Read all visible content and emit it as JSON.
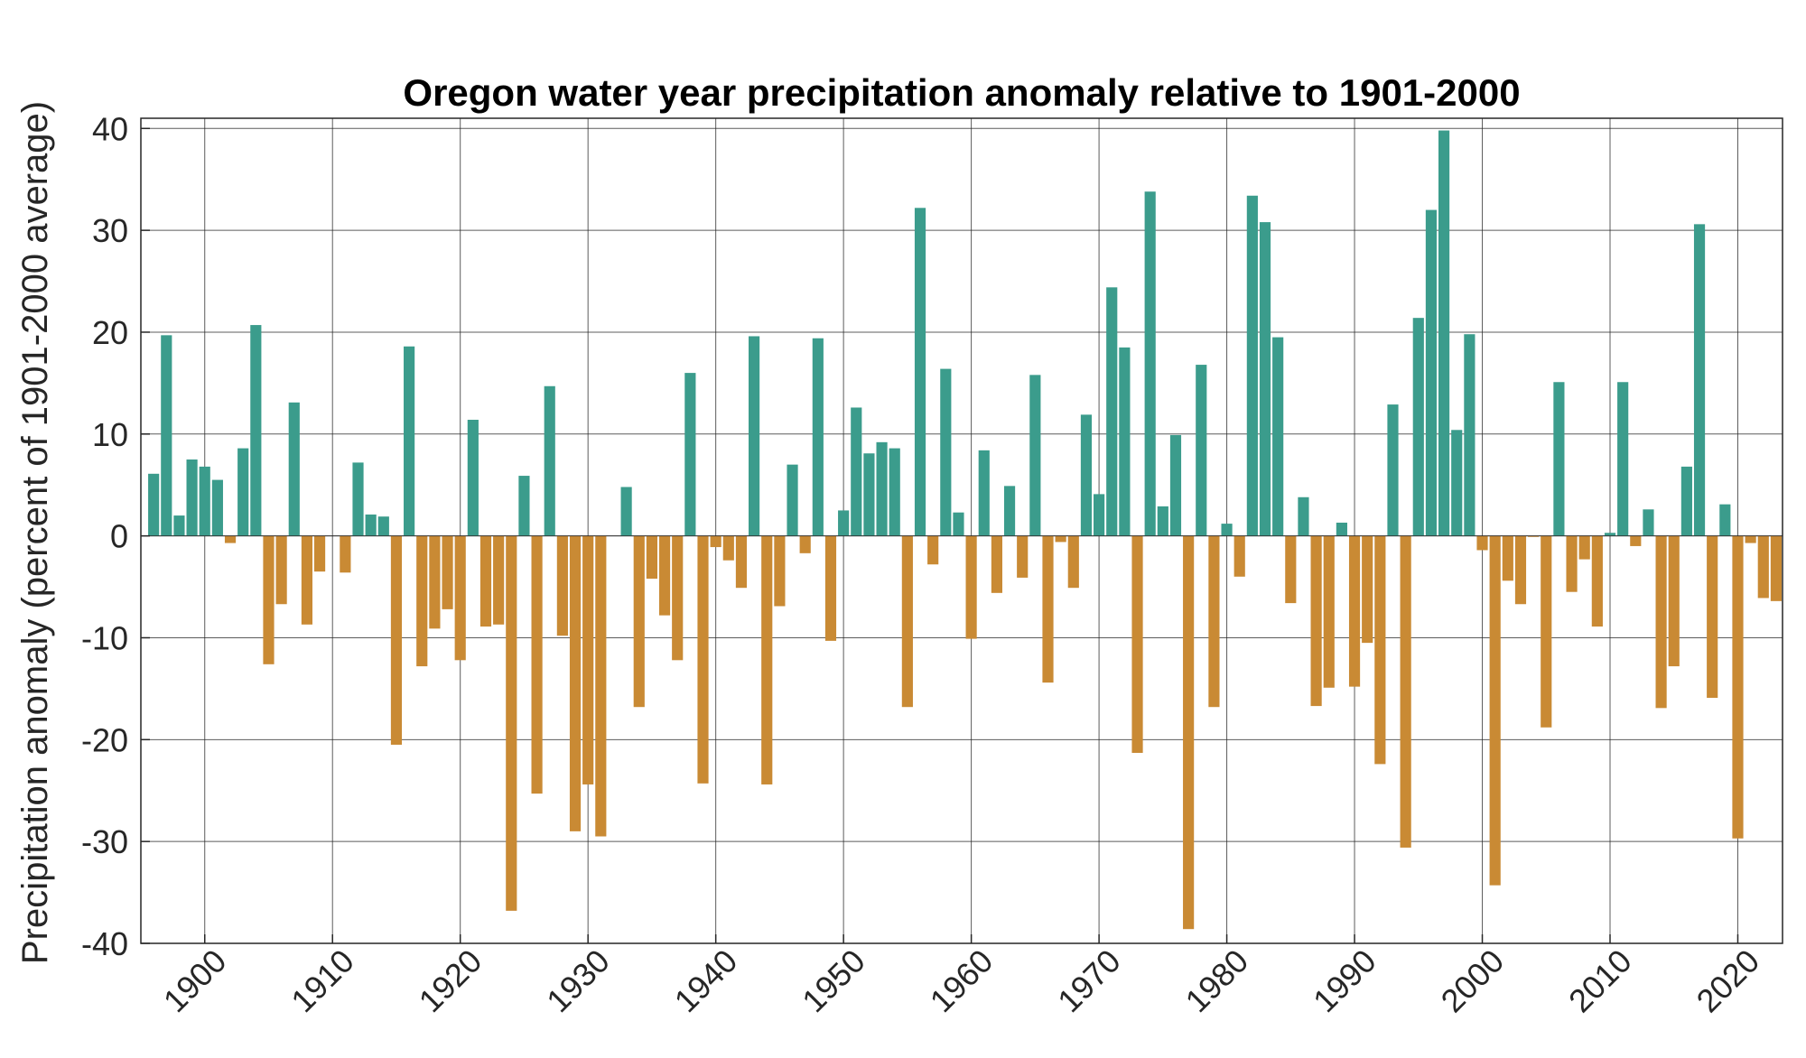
{
  "chart_data": {
    "type": "bar",
    "title": "Oregon water year precipitation anomaly relative to 1901-2000",
    "xlabel": "",
    "ylabel": "Precipitation anomaly (percent of 1901-2000 average)",
    "xlim": [
      1895,
      2023.5
    ],
    "ylim": [
      -40,
      41
    ],
    "grid": true,
    "xticks": [
      1900,
      1910,
      1920,
      1930,
      1940,
      1950,
      1960,
      1970,
      1980,
      1990,
      2000,
      2010,
      2020
    ],
    "yticks": [
      -40,
      -30,
      -20,
      -10,
      0,
      10,
      20,
      30,
      40
    ],
    "colors": {
      "positive": "#3b9c8c",
      "negative": "#c98a34"
    },
    "years": [
      1896,
      1897,
      1898,
      1899,
      1900,
      1901,
      1902,
      1903,
      1904,
      1905,
      1906,
      1907,
      1908,
      1909,
      1910,
      1911,
      1912,
      1913,
      1914,
      1915,
      1916,
      1917,
      1918,
      1919,
      1920,
      1921,
      1922,
      1923,
      1924,
      1925,
      1926,
      1927,
      1928,
      1929,
      1930,
      1931,
      1932,
      1933,
      1934,
      1935,
      1936,
      1937,
      1938,
      1939,
      1940,
      1941,
      1942,
      1943,
      1944,
      1945,
      1946,
      1947,
      1948,
      1949,
      1950,
      1951,
      1952,
      1953,
      1954,
      1955,
      1956,
      1957,
      1958,
      1959,
      1960,
      1961,
      1962,
      1963,
      1964,
      1965,
      1966,
      1967,
      1968,
      1969,
      1970,
      1971,
      1972,
      1973,
      1974,
      1975,
      1976,
      1977,
      1978,
      1979,
      1980,
      1981,
      1982,
      1983,
      1984,
      1985,
      1986,
      1987,
      1988,
      1989,
      1990,
      1991,
      1992,
      1993,
      1994,
      1995,
      1996,
      1997,
      1998,
      1999,
      2000,
      2001,
      2002,
      2003,
      2004,
      2005,
      2006,
      2007,
      2008,
      2009,
      2010,
      2011,
      2012,
      2013,
      2014,
      2015,
      2016,
      2017,
      2018,
      2019,
      2020,
      2021,
      2022,
      2023
    ],
    "values": [
      6.1,
      19.7,
      2.0,
      7.5,
      6.8,
      5.5,
      -0.7,
      8.6,
      20.7,
      -12.6,
      -6.7,
      13.1,
      -8.7,
      -3.5,
      0.0,
      -3.6,
      7.2,
      2.1,
      1.9,
      -20.5,
      18.6,
      -12.8,
      -9.1,
      -7.2,
      -12.2,
      11.4,
      -8.9,
      -8.7,
      -36.8,
      5.9,
      -25.3,
      14.7,
      -9.8,
      -29.0,
      -24.4,
      -29.5,
      0.0,
      4.8,
      -16.8,
      -4.2,
      -7.8,
      -12.2,
      16.0,
      -24.3,
      -1.1,
      -2.4,
      -5.1,
      19.6,
      -24.4,
      -6.9,
      7.0,
      -1.7,
      19.4,
      -10.3,
      2.5,
      12.6,
      8.1,
      9.2,
      8.6,
      -16.8,
      32.2,
      -2.8,
      16.4,
      2.3,
      -10.1,
      8.4,
      -5.6,
      4.9,
      -4.1,
      15.8,
      -14.4,
      -0.6,
      -5.1,
      11.9,
      4.1,
      24.4,
      18.5,
      -21.3,
      33.8,
      2.9,
      9.9,
      -38.6,
      16.8,
      -16.8,
      1.2,
      -4.0,
      33.4,
      30.8,
      19.5,
      -6.6,
      3.8,
      -16.7,
      -14.9,
      1.3,
      -14.8,
      -10.5,
      -22.4,
      12.9,
      -30.6,
      21.4,
      32.0,
      39.8,
      10.4,
      19.8,
      -1.4,
      -34.3,
      -4.4,
      -6.7,
      -0.1,
      -18.8,
      15.1,
      -5.5,
      -2.3,
      -8.9,
      0.3,
      15.1,
      -1.0,
      2.6,
      -16.9,
      -12.8,
      6.8,
      30.6,
      -15.9,
      3.1,
      -29.7,
      -0.7,
      -6.1,
      -6.4
    ]
  }
}
